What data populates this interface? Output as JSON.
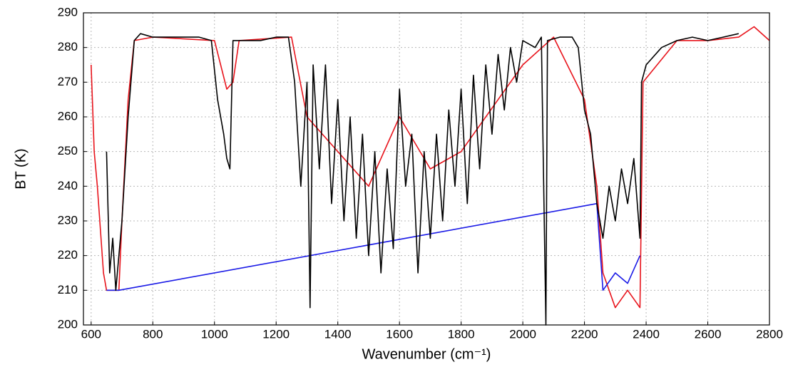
{
  "chart_data": {
    "type": "line",
    "x_label": "Wavenumber (cm⁻¹)",
    "y_label": "BT (K)",
    "xlim": [
      575,
      2800
    ],
    "ylim": [
      200,
      290
    ],
    "xticks": [
      600,
      800,
      1000,
      1200,
      1400,
      1600,
      1800,
      2000,
      2200,
      2400,
      2600,
      2800
    ],
    "yticks": [
      200,
      210,
      220,
      230,
      240,
      250,
      260,
      270,
      280,
      290
    ],
    "grid": true,
    "series": [
      {
        "color": "#e8141c",
        "x": [
          600,
          610,
          620,
          640,
          650,
          690,
          700,
          720,
          740,
          800,
          1000,
          1020,
          1040,
          1060,
          1080,
          1250,
          1300,
          1500,
          1600,
          1700,
          1800,
          2000,
          2100,
          2200,
          2240,
          2260,
          2300,
          2340,
          2380,
          2390,
          2500,
          2600,
          2700,
          2750,
          2800
        ],
        "values": [
          275,
          250,
          240,
          215,
          210,
          210,
          230,
          265,
          282,
          283,
          282,
          275,
          268,
          270,
          282,
          283,
          260,
          240,
          260,
          245,
          250,
          275,
          283,
          265,
          240,
          215,
          205,
          210,
          205,
          270,
          282,
          282,
          283,
          286,
          282
        ]
      },
      {
        "color": "#1a1ae6",
        "x": [
          650,
          690,
          2240,
          2260,
          2300,
          2340,
          2380
        ],
        "values": [
          210,
          210,
          235,
          210,
          215,
          212,
          220
        ]
      },
      {
        "color": "#000000",
        "x": [
          650,
          660,
          670,
          680,
          690,
          700,
          720,
          740,
          760,
          800,
          850,
          900,
          950,
          990,
          1010,
          1030,
          1040,
          1050,
          1060,
          1100,
          1150,
          1200,
          1240,
          1260,
          1280,
          1300,
          1310,
          1320,
          1340,
          1360,
          1380,
          1400,
          1420,
          1440,
          1460,
          1480,
          1500,
          1520,
          1540,
          1560,
          1580,
          1600,
          1620,
          1640,
          1660,
          1680,
          1700,
          1720,
          1740,
          1760,
          1780,
          1800,
          1820,
          1840,
          1860,
          1880,
          1900,
          1920,
          1940,
          1960,
          1980,
          2000,
          2040,
          2060,
          2075,
          2080,
          2120,
          2160,
          2180,
          2200,
          2220,
          2240,
          2260,
          2280,
          2300,
          2320,
          2340,
          2360,
          2380,
          2385,
          2400,
          2450,
          2500,
          2550,
          2600,
          2650,
          2700
        ],
        "values": [
          250,
          215,
          225,
          210,
          220,
          230,
          260,
          282,
          284,
          283,
          283,
          283,
          283,
          282,
          265,
          255,
          248,
          245,
          282,
          282,
          282,
          283,
          283,
          270,
          240,
          270,
          205,
          275,
          245,
          275,
          235,
          265,
          230,
          260,
          225,
          255,
          220,
          250,
          215,
          245,
          222,
          268,
          240,
          255,
          215,
          250,
          225,
          255,
          230,
          262,
          240,
          268,
          235,
          272,
          245,
          275,
          255,
          278,
          262,
          280,
          270,
          282,
          280,
          283,
          200,
          282,
          283,
          283,
          280,
          262,
          255,
          235,
          225,
          240,
          230,
          245,
          235,
          248,
          225,
          270,
          275,
          280,
          282,
          283,
          282,
          283,
          284
        ]
      }
    ]
  }
}
